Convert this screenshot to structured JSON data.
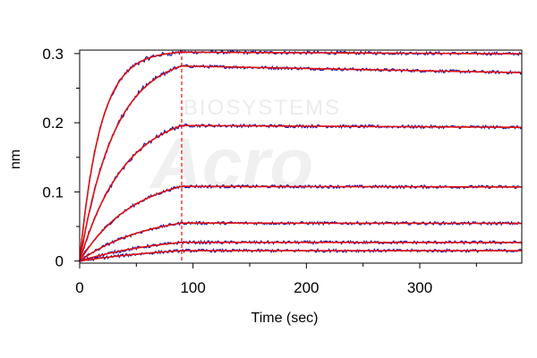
{
  "chart_data": {
    "type": "line",
    "title": "",
    "xlabel": "Time (sec)",
    "ylabel": "nm",
    "xlim": [
      0,
      390
    ],
    "ylim": [
      -0.003,
      0.305
    ],
    "xticks": [
      0,
      100,
      200,
      300
    ],
    "yticks": [
      0,
      0.1,
      0.2,
      0.3
    ],
    "ytick_labels": [
      "0",
      "0.1",
      "0.2",
      "0.3"
    ],
    "grid": false,
    "legend": "none",
    "association_end": 90,
    "raw_color": "#1a1ab8",
    "fit_color": "#e01010",
    "marker_color": "#e01010",
    "watermark_text": [
      "BIOSYSTEMS",
      "Acro"
    ],
    "series": [
      {
        "association_k": 0.055,
        "plateau": 0.302,
        "dissociation_k": 2.5e-05
      },
      {
        "association_k": 0.032,
        "plateau": 0.282,
        "dissociation_k": 0.000115
      },
      {
        "association_k": 0.025,
        "plateau": 0.196,
        "dissociation_k": 4.5e-05
      },
      {
        "association_k": 0.021,
        "plateau": 0.108,
        "dissociation_k": 2.8e-05
      },
      {
        "association_k": 0.017,
        "plateau": 0.055,
        "dissociation_k": 3e-05
      },
      {
        "association_k": 0.013,
        "plateau": 0.027,
        "dissociation_k": 1e-05
      },
      {
        "association_k": 0.01,
        "plateau": 0.015,
        "dissociation_k": 0.0
      }
    ]
  }
}
